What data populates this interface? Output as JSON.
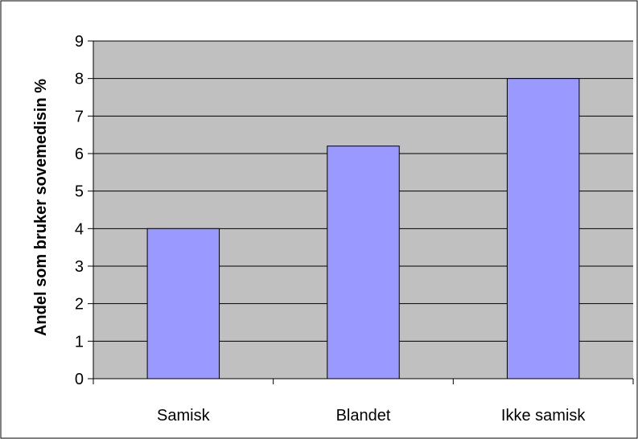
{
  "chart_data": {
    "type": "bar",
    "title": "",
    "xlabel": "",
    "ylabel": "Andel som bruker sovemedisin %",
    "categories": [
      "Samisk",
      "Blandet",
      "Ikke samisk"
    ],
    "values": [
      4,
      6.2,
      8
    ],
    "ylim": [
      0,
      9
    ],
    "yticks": [
      0,
      1,
      2,
      3,
      4,
      5,
      6,
      7,
      8,
      9
    ],
    "grid": true,
    "legend": "none",
    "colors": {
      "bar_fill": "#9999ff",
      "plot_background": "#c0c0c0",
      "gridline": "#000000",
      "frame": "#000000"
    }
  }
}
